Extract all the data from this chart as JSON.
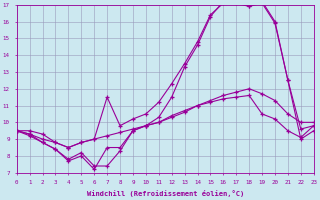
{
  "xlabel": "Windchill (Refroidissement éolien,°C)",
  "bg_color": "#cce8f0",
  "grid_color": "#9999bb",
  "line_color": "#990099",
  "x_min": 0,
  "x_max": 23,
  "y_min": 7,
  "y_max": 17,
  "line1_x": [
    0,
    1,
    2,
    3,
    4,
    5,
    6,
    7,
    8,
    9,
    10,
    11,
    12,
    13,
    14,
    15,
    16,
    17,
    18,
    19,
    20,
    21,
    22,
    23
  ],
  "line1_y": [
    9.5,
    9.5,
    9.3,
    8.8,
    8.5,
    8.8,
    9.0,
    9.2,
    9.4,
    9.6,
    9.8,
    10.0,
    10.3,
    10.6,
    11.0,
    11.3,
    11.6,
    11.8,
    12.0,
    11.7,
    11.3,
    10.5,
    10.0,
    10.0
  ],
  "line2_x": [
    0,
    1,
    2,
    3,
    4,
    5,
    6,
    7,
    8,
    9,
    10,
    11,
    12,
    13,
    14,
    15,
    16,
    17,
    18,
    19,
    20,
    21,
    22,
    23
  ],
  "line2_y": [
    9.5,
    9.3,
    9.0,
    8.8,
    8.5,
    8.8,
    9.0,
    11.5,
    9.8,
    10.2,
    10.5,
    11.2,
    12.3,
    13.5,
    14.8,
    16.4,
    17.1,
    17.1,
    16.9,
    17.1,
    15.9,
    12.5,
    9.6,
    9.8
  ],
  "line3_x": [
    0,
    1,
    2,
    3,
    4,
    5,
    6,
    7,
    8,
    9,
    10,
    11,
    12,
    13,
    14,
    15,
    16,
    17,
    18,
    19,
    20,
    21,
    22,
    23
  ],
  "line3_y": [
    9.5,
    9.3,
    8.8,
    8.4,
    7.8,
    8.2,
    7.4,
    7.4,
    8.3,
    9.5,
    9.8,
    10.3,
    11.5,
    13.3,
    14.6,
    16.3,
    17.2,
    17.2,
    16.9,
    17.2,
    16.0,
    12.5,
    9.0,
    9.5
  ],
  "line4_x": [
    0,
    1,
    2,
    3,
    4,
    5,
    6,
    7,
    8,
    9,
    10,
    11,
    12,
    13,
    14,
    15,
    16,
    17,
    18,
    19,
    20,
    21,
    22,
    23
  ],
  "line4_y": [
    9.5,
    9.2,
    8.8,
    8.4,
    7.7,
    8.0,
    7.2,
    8.5,
    8.5,
    9.5,
    9.8,
    10.0,
    10.4,
    10.7,
    11.0,
    11.2,
    11.4,
    11.5,
    11.6,
    10.5,
    10.2,
    9.5,
    9.1,
    9.8
  ]
}
